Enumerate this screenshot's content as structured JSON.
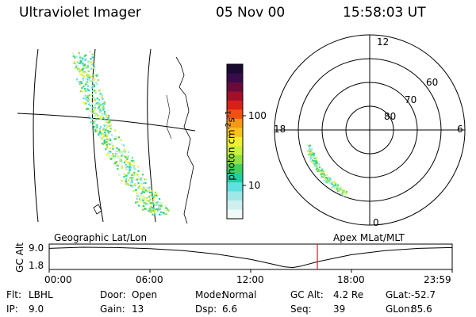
{
  "header": {
    "instrument": "Ultraviolet Imager",
    "date": "05 Nov 00",
    "time": "15:58:03 UT"
  },
  "geo_map": {
    "label": "Geographic Lat/Lon"
  },
  "apex": {
    "label": "Apex MLat/MLT",
    "mlt_labels": [
      "12",
      "18",
      "6",
      "0"
    ],
    "mlat_labels": [
      "60",
      "70",
      "80"
    ]
  },
  "colorbar": {
    "unit_prefix": "photon cm",
    "unit_exp1": "-2",
    "unit_mid": "s",
    "unit_exp2": "-1",
    "ticks": [
      "100",
      "10"
    ],
    "colors": [
      "#1a0b33",
      "#3a0a4a",
      "#6a0a3a",
      "#a0102a",
      "#d8201a",
      "#f05010",
      "#f49818",
      "#f8c020",
      "#f0f030",
      "#c8f040",
      "#90e040",
      "#40d060",
      "#20d0a0",
      "#60e0e0",
      "#a0e8e8",
      "#d0f0f0",
      "#f0f8f8"
    ]
  },
  "altitude_plot": {
    "ylabel": "GC Alt",
    "yticks": [
      "9.0",
      "1.8"
    ],
    "xticks": [
      "00:00",
      "06:00",
      "12:00",
      "18:00",
      "23:59"
    ],
    "marker_time_hours": 15.97,
    "marker_color": "#cc2222",
    "chart_data": {
      "type": "line",
      "xlabel": "",
      "ylabel": "GC Alt",
      "ylim": [
        1.8,
        9.0
      ],
      "xlim": [
        0,
        24
      ],
      "series": [
        {
          "x": [
            0,
            2,
            4,
            6,
            8,
            10,
            12,
            13,
            14,
            14.5,
            15,
            16,
            18,
            20,
            22,
            24
          ],
          "values": [
            8.6,
            9.0,
            8.9,
            8.5,
            7.8,
            6.6,
            4.8,
            3.5,
            2.2,
            1.9,
            2.4,
            4.0,
            6.4,
            7.8,
            8.6,
            8.9
          ]
        }
      ]
    }
  },
  "footer": {
    "row1": [
      {
        "label": "Flt:",
        "value": "LBHL"
      },
      {
        "label": "Door:",
        "value": "Open"
      },
      {
        "label": "Mode:",
        "value": "Normal"
      },
      {
        "label": "GC Alt:",
        "value": "4.2 Re"
      },
      {
        "label": "GLat:",
        "value": "-52.7"
      }
    ],
    "row2": [
      {
        "label": "IP:",
        "value": "9.0"
      },
      {
        "label": "Gain:",
        "value": "13"
      },
      {
        "label": "Dsp:",
        "value": "6.6"
      },
      {
        "label": "Seq:",
        "value": "39"
      },
      {
        "label": "GLon:",
        "value": "85.6"
      }
    ]
  }
}
